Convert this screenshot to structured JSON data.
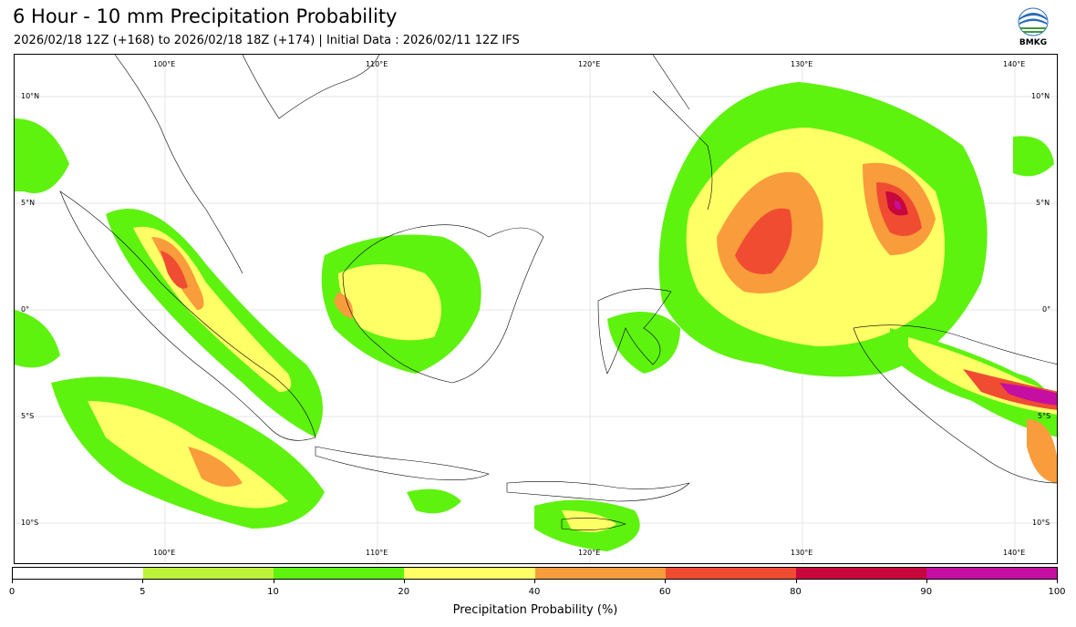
{
  "header": {
    "title": "6 Hour - 10 mm Precipitation Probability",
    "subtitle": "2026/02/18 12Z (+168) to 2026/02/18 18Z (+174) | Initial Data : 2026/02/11 12Z IFS",
    "logo_text": "BMKG"
  },
  "map": {
    "lon_top": [
      "100°E",
      "110°E",
      "120°E",
      "130°E",
      "140°E"
    ],
    "lon_bottom": [
      "100°E",
      "110°E",
      "120°E",
      "130°E",
      "140°E"
    ],
    "lat_left": [
      "10°N",
      "5°N",
      "0°",
      "5°S",
      "10°S"
    ],
    "lat_right": [
      "10°N",
      "5°N",
      "0°",
      "5°S",
      "10°S"
    ]
  },
  "legend": {
    "title": "Precipitation Probability (%)",
    "ticks": [
      "0",
      "5",
      "10",
      "20",
      "40",
      "60",
      "80",
      "90",
      "100"
    ],
    "bins": [
      {
        "from": 0,
        "to": 5,
        "color": "#ffffff"
      },
      {
        "from": 5,
        "to": 10,
        "color": "#bdf23b"
      },
      {
        "from": 10,
        "to": 20,
        "color": "#5ef20f"
      },
      {
        "from": 20,
        "to": 40,
        "color": "#ffff66"
      },
      {
        "from": 40,
        "to": 60,
        "color": "#f99c3b"
      },
      {
        "from": 60,
        "to": 80,
        "color": "#ef4c32"
      },
      {
        "from": 80,
        "to": 90,
        "color": "#c8073d"
      },
      {
        "from": 90,
        "to": 100,
        "color": "#c50ea2"
      }
    ]
  }
}
